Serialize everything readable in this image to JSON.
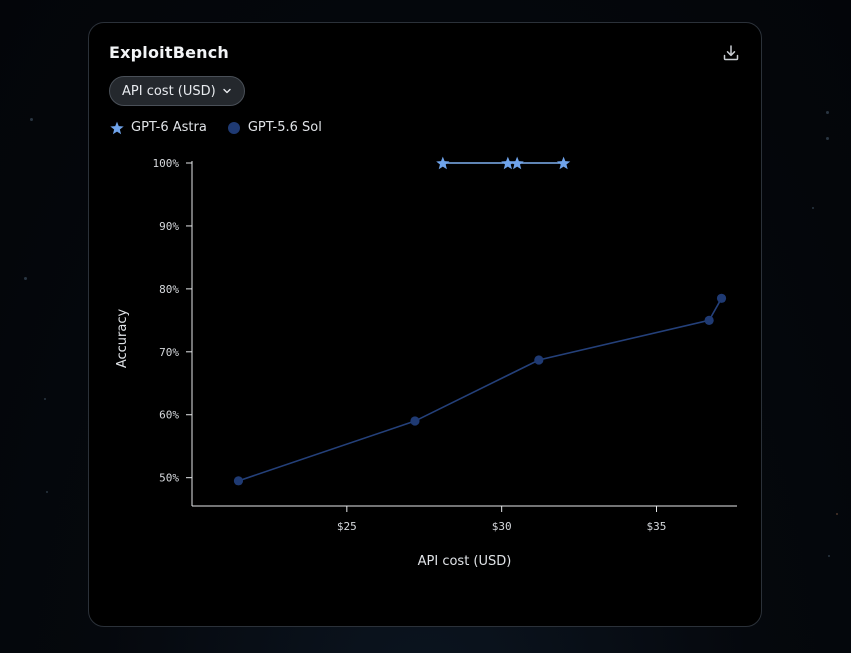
{
  "card": {
    "title": "ExploitBench",
    "download_icon": "download-icon"
  },
  "metric_select": {
    "selected": "API cost (USD)",
    "icon": "chevron-down-icon"
  },
  "legend": {
    "items": [
      {
        "label": "GPT-6 Astra",
        "marker": "star",
        "color": "#6fa3ea"
      },
      {
        "label": "GPT-5.6 Sol",
        "marker": "circle",
        "color": "#1f3a73"
      }
    ]
  },
  "chart_data": {
    "type": "scatter",
    "xlabel": "API cost (USD)",
    "ylabel": "Accuracy",
    "xlim": [
      20.0,
      37.6
    ],
    "ylim": [
      45.5,
      100
    ],
    "x_ticks": [
      25,
      30,
      35
    ],
    "x_tick_labels": [
      "$25",
      "$30",
      "$35"
    ],
    "y_ticks": [
      50,
      60,
      70,
      80,
      90,
      100
    ],
    "y_tick_labels": [
      "50%",
      "60%",
      "70%",
      "80%",
      "90%",
      "100%"
    ],
    "grid": false,
    "series": [
      {
        "name": "GPT-6 Astra",
        "marker": "star",
        "color": "#6fa3ea",
        "x": [
          28.1,
          30.2,
          30.5,
          32.0
        ],
        "y": [
          100,
          100,
          100,
          100
        ]
      },
      {
        "name": "GPT-5.6 Sol",
        "marker": "circle",
        "color": "#1f3a73",
        "x": [
          21.5,
          27.2,
          31.2,
          36.7,
          37.1
        ],
        "y": [
          49.5,
          59.0,
          68.7,
          75.0,
          78.5
        ]
      }
    ]
  }
}
